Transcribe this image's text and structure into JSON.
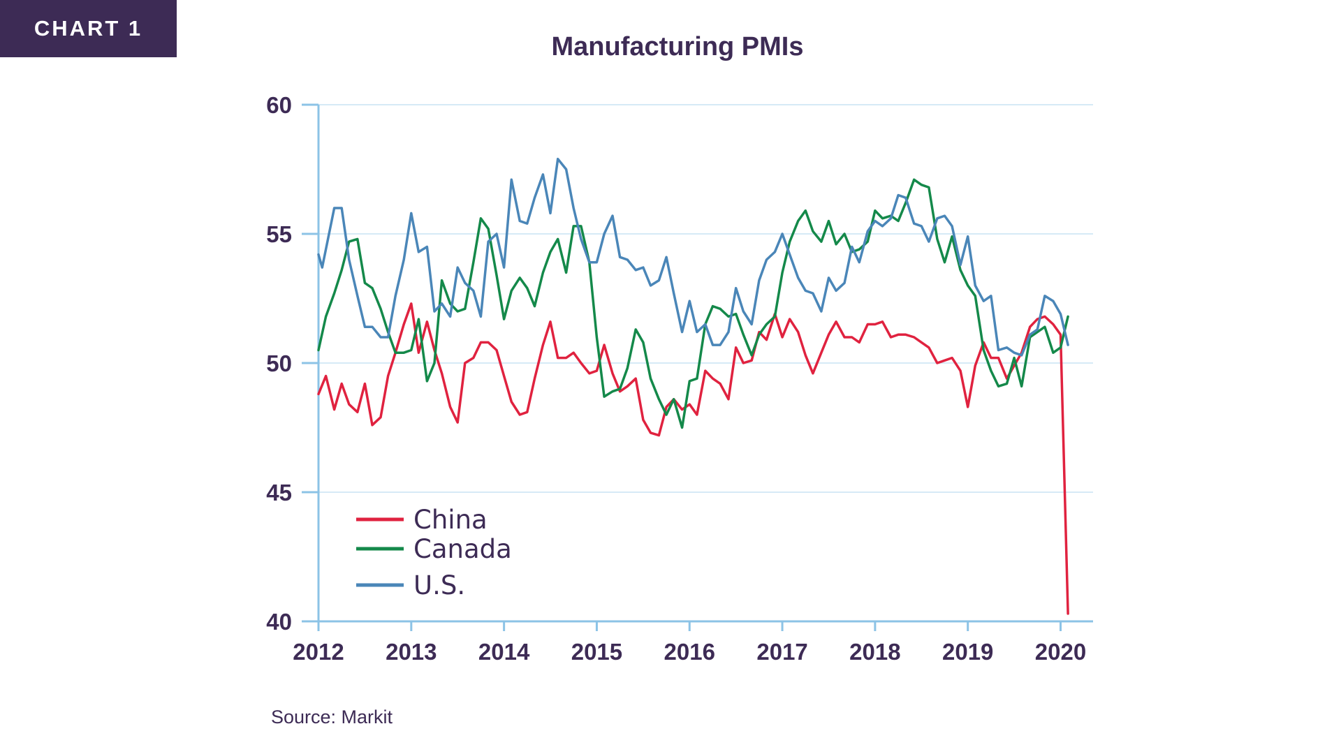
{
  "tag": "CHART 1",
  "source": "Source: Markit",
  "colors": {
    "china": "#e0223f",
    "canada": "#14894a",
    "us": "#4a86b8",
    "text": "#3d2b55",
    "grid": "#c9e3f3",
    "axis": "#8cc3e6"
  },
  "chart_data": {
    "type": "line",
    "title": "Manufacturing PMIs",
    "xlabel": "",
    "ylabel": "",
    "xlim": [
      2012,
      2020.35
    ],
    "ylim": [
      40,
      60
    ],
    "yticks": [
      "60",
      "55",
      "50",
      "45",
      "40"
    ],
    "xticks": [
      "2012",
      "2013",
      "2014",
      "2015",
      "2016",
      "2017",
      "2018",
      "2019",
      "2020"
    ],
    "grid": true,
    "legend_position": "bottom-left",
    "series": [
      {
        "name": "China",
        "color": "#e0223f",
        "points": [
          [
            2012.0,
            48.8
          ],
          [
            2012.08,
            49.5
          ],
          [
            2012.17,
            48.2
          ],
          [
            2012.25,
            49.2
          ],
          [
            2012.33,
            48.4
          ],
          [
            2012.42,
            48.1
          ],
          [
            2012.5,
            49.2
          ],
          [
            2012.58,
            47.6
          ],
          [
            2012.67,
            47.9
          ],
          [
            2012.75,
            49.5
          ],
          [
            2012.83,
            50.4
          ],
          [
            2012.92,
            51.5
          ],
          [
            2013.0,
            52.3
          ],
          [
            2013.08,
            50.4
          ],
          [
            2013.17,
            51.6
          ],
          [
            2013.25,
            50.5
          ],
          [
            2013.33,
            49.6
          ],
          [
            2013.42,
            48.3
          ],
          [
            2013.5,
            47.7
          ],
          [
            2013.58,
            50.0
          ],
          [
            2013.67,
            50.2
          ],
          [
            2013.75,
            50.8
          ],
          [
            2013.83,
            50.8
          ],
          [
            2013.92,
            50.5
          ],
          [
            2014.0,
            49.5
          ],
          [
            2014.08,
            48.5
          ],
          [
            2014.17,
            48.0
          ],
          [
            2014.25,
            48.1
          ],
          [
            2014.33,
            49.4
          ],
          [
            2014.42,
            50.7
          ],
          [
            2014.5,
            51.6
          ],
          [
            2014.58,
            50.2
          ],
          [
            2014.67,
            50.2
          ],
          [
            2014.75,
            50.4
          ],
          [
            2014.83,
            50.0
          ],
          [
            2014.92,
            49.6
          ],
          [
            2015.0,
            49.7
          ],
          [
            2015.08,
            50.7
          ],
          [
            2015.17,
            49.6
          ],
          [
            2015.25,
            48.9
          ],
          [
            2015.33,
            49.1
          ],
          [
            2015.42,
            49.4
          ],
          [
            2015.5,
            47.8
          ],
          [
            2015.58,
            47.3
          ],
          [
            2015.67,
            47.2
          ],
          [
            2015.75,
            48.3
          ],
          [
            2015.83,
            48.6
          ],
          [
            2015.92,
            48.2
          ],
          [
            2016.0,
            48.4
          ],
          [
            2016.08,
            48.0
          ],
          [
            2016.17,
            49.7
          ],
          [
            2016.25,
            49.4
          ],
          [
            2016.33,
            49.2
          ],
          [
            2016.42,
            48.6
          ],
          [
            2016.5,
            50.6
          ],
          [
            2016.58,
            50.0
          ],
          [
            2016.67,
            50.1
          ],
          [
            2016.75,
            51.2
          ],
          [
            2016.83,
            50.9
          ],
          [
            2016.92,
            51.9
          ],
          [
            2017.0,
            51.0
          ],
          [
            2017.08,
            51.7
          ],
          [
            2017.17,
            51.2
          ],
          [
            2017.25,
            50.3
          ],
          [
            2017.33,
            49.6
          ],
          [
            2017.42,
            50.4
          ],
          [
            2017.5,
            51.1
          ],
          [
            2017.58,
            51.6
          ],
          [
            2017.67,
            51.0
          ],
          [
            2017.75,
            51.0
          ],
          [
            2017.83,
            50.8
          ],
          [
            2017.92,
            51.5
          ],
          [
            2018.0,
            51.5
          ],
          [
            2018.08,
            51.6
          ],
          [
            2018.17,
            51.0
          ],
          [
            2018.25,
            51.1
          ],
          [
            2018.33,
            51.1
          ],
          [
            2018.42,
            51.0
          ],
          [
            2018.5,
            50.8
          ],
          [
            2018.58,
            50.6
          ],
          [
            2018.67,
            50.0
          ],
          [
            2018.75,
            50.1
          ],
          [
            2018.83,
            50.2
          ],
          [
            2018.92,
            49.7
          ],
          [
            2019.0,
            48.3
          ],
          [
            2019.08,
            49.9
          ],
          [
            2019.17,
            50.8
          ],
          [
            2019.25,
            50.2
          ],
          [
            2019.33,
            50.2
          ],
          [
            2019.42,
            49.4
          ],
          [
            2019.5,
            49.9
          ],
          [
            2019.58,
            50.4
          ],
          [
            2019.67,
            51.4
          ],
          [
            2019.75,
            51.7
          ],
          [
            2019.83,
            51.8
          ],
          [
            2019.92,
            51.5
          ],
          [
            2020.0,
            51.1
          ],
          [
            2020.08,
            40.3
          ]
        ]
      },
      {
        "name": "Canada",
        "color": "#14894a",
        "points": [
          [
            2012.0,
            50.5
          ],
          [
            2012.08,
            51.8
          ],
          [
            2012.17,
            52.7
          ],
          [
            2012.25,
            53.6
          ],
          [
            2012.33,
            54.7
          ],
          [
            2012.42,
            54.8
          ],
          [
            2012.5,
            53.1
          ],
          [
            2012.58,
            52.9
          ],
          [
            2012.67,
            52.1
          ],
          [
            2012.75,
            51.2
          ],
          [
            2012.83,
            50.4
          ],
          [
            2012.92,
            50.4
          ],
          [
            2013.0,
            50.5
          ],
          [
            2013.08,
            51.7
          ],
          [
            2013.17,
            49.3
          ],
          [
            2013.25,
            50.0
          ],
          [
            2013.33,
            53.2
          ],
          [
            2013.42,
            52.3
          ],
          [
            2013.5,
            52.0
          ],
          [
            2013.58,
            52.1
          ],
          [
            2013.67,
            53.9
          ],
          [
            2013.75,
            55.6
          ],
          [
            2013.83,
            55.2
          ],
          [
            2013.92,
            53.4
          ],
          [
            2014.0,
            51.7
          ],
          [
            2014.08,
            52.8
          ],
          [
            2014.17,
            53.3
          ],
          [
            2014.25,
            52.9
          ],
          [
            2014.33,
            52.2
          ],
          [
            2014.42,
            53.5
          ],
          [
            2014.5,
            54.3
          ],
          [
            2014.58,
            54.8
          ],
          [
            2014.67,
            53.5
          ],
          [
            2014.75,
            55.3
          ],
          [
            2014.83,
            55.3
          ],
          [
            2014.92,
            53.9
          ],
          [
            2015.0,
            51.0
          ],
          [
            2015.08,
            48.7
          ],
          [
            2015.17,
            48.9
          ],
          [
            2015.25,
            49.0
          ],
          [
            2015.33,
            49.8
          ],
          [
            2015.42,
            51.3
          ],
          [
            2015.5,
            50.8
          ],
          [
            2015.58,
            49.4
          ],
          [
            2015.67,
            48.6
          ],
          [
            2015.75,
            48.0
          ],
          [
            2015.83,
            48.6
          ],
          [
            2015.92,
            47.5
          ],
          [
            2016.0,
            49.3
          ],
          [
            2016.08,
            49.4
          ],
          [
            2016.17,
            51.5
          ],
          [
            2016.25,
            52.2
          ],
          [
            2016.33,
            52.1
          ],
          [
            2016.42,
            51.8
          ],
          [
            2016.5,
            51.9
          ],
          [
            2016.58,
            51.1
          ],
          [
            2016.67,
            50.3
          ],
          [
            2016.75,
            51.1
          ],
          [
            2016.83,
            51.5
          ],
          [
            2016.92,
            51.8
          ],
          [
            2017.0,
            53.5
          ],
          [
            2017.08,
            54.7
          ],
          [
            2017.17,
            55.5
          ],
          [
            2017.25,
            55.9
          ],
          [
            2017.33,
            55.1
          ],
          [
            2017.42,
            54.7
          ],
          [
            2017.5,
            55.5
          ],
          [
            2017.58,
            54.6
          ],
          [
            2017.67,
            55.0
          ],
          [
            2017.75,
            54.3
          ],
          [
            2017.83,
            54.4
          ],
          [
            2017.92,
            54.7
          ],
          [
            2018.0,
            55.9
          ],
          [
            2018.08,
            55.6
          ],
          [
            2018.17,
            55.7
          ],
          [
            2018.25,
            55.5
          ],
          [
            2018.33,
            56.2
          ],
          [
            2018.42,
            57.1
          ],
          [
            2018.5,
            56.9
          ],
          [
            2018.58,
            56.8
          ],
          [
            2018.67,
            54.8
          ],
          [
            2018.75,
            53.9
          ],
          [
            2018.83,
            54.9
          ],
          [
            2018.92,
            53.6
          ],
          [
            2019.0,
            53.0
          ],
          [
            2019.08,
            52.6
          ],
          [
            2019.17,
            50.5
          ],
          [
            2019.25,
            49.7
          ],
          [
            2019.33,
            49.1
          ],
          [
            2019.42,
            49.2
          ],
          [
            2019.5,
            50.2
          ],
          [
            2019.58,
            49.1
          ],
          [
            2019.67,
            51.0
          ],
          [
            2019.75,
            51.2
          ],
          [
            2019.83,
            51.4
          ],
          [
            2019.92,
            50.4
          ],
          [
            2020.0,
            50.6
          ],
          [
            2020.08,
            51.8
          ]
        ]
      },
      {
        "name": "U.S.",
        "color": "#4a86b8",
        "points": [
          [
            2012.0,
            54.2
          ],
          [
            2012.04,
            53.7
          ],
          [
            2012.17,
            56.0
          ],
          [
            2012.25,
            56.0
          ],
          [
            2012.33,
            54.0
          ],
          [
            2012.42,
            52.6
          ],
          [
            2012.5,
            51.4
          ],
          [
            2012.58,
            51.4
          ],
          [
            2012.67,
            51.0
          ],
          [
            2012.75,
            51.0
          ],
          [
            2012.83,
            52.6
          ],
          [
            2012.92,
            54.0
          ],
          [
            2013.0,
            55.8
          ],
          [
            2013.08,
            54.3
          ],
          [
            2013.17,
            54.5
          ],
          [
            2013.25,
            52.0
          ],
          [
            2013.33,
            52.3
          ],
          [
            2013.42,
            51.8
          ],
          [
            2013.5,
            53.7
          ],
          [
            2013.58,
            53.1
          ],
          [
            2013.67,
            52.8
          ],
          [
            2013.75,
            51.8
          ],
          [
            2013.83,
            54.7
          ],
          [
            2013.92,
            55.0
          ],
          [
            2014.0,
            53.7
          ],
          [
            2014.08,
            57.1
          ],
          [
            2014.17,
            55.5
          ],
          [
            2014.25,
            55.4
          ],
          [
            2014.33,
            56.4
          ],
          [
            2014.42,
            57.3
          ],
          [
            2014.5,
            55.8
          ],
          [
            2014.58,
            57.9
          ],
          [
            2014.67,
            57.5
          ],
          [
            2014.75,
            56.0
          ],
          [
            2014.83,
            54.8
          ],
          [
            2014.92,
            53.9
          ],
          [
            2015.0,
            53.9
          ],
          [
            2015.08,
            55.0
          ],
          [
            2015.17,
            55.7
          ],
          [
            2015.25,
            54.1
          ],
          [
            2015.33,
            54.0
          ],
          [
            2015.42,
            53.6
          ],
          [
            2015.5,
            53.7
          ],
          [
            2015.58,
            53.0
          ],
          [
            2015.67,
            53.2
          ],
          [
            2015.75,
            54.1
          ],
          [
            2015.83,
            52.7
          ],
          [
            2015.92,
            51.2
          ],
          [
            2016.0,
            52.4
          ],
          [
            2016.08,
            51.2
          ],
          [
            2016.17,
            51.5
          ],
          [
            2016.25,
            50.7
          ],
          [
            2016.33,
            50.7
          ],
          [
            2016.42,
            51.2
          ],
          [
            2016.5,
            52.9
          ],
          [
            2016.58,
            52.0
          ],
          [
            2016.67,
            51.5
          ],
          [
            2016.75,
            53.2
          ],
          [
            2016.83,
            54.0
          ],
          [
            2016.92,
            54.3
          ],
          [
            2017.0,
            55.0
          ],
          [
            2017.08,
            54.2
          ],
          [
            2017.17,
            53.3
          ],
          [
            2017.25,
            52.8
          ],
          [
            2017.33,
            52.7
          ],
          [
            2017.42,
            52.0
          ],
          [
            2017.5,
            53.3
          ],
          [
            2017.58,
            52.8
          ],
          [
            2017.67,
            53.1
          ],
          [
            2017.75,
            54.5
          ],
          [
            2017.83,
            53.9
          ],
          [
            2017.92,
            55.1
          ],
          [
            2018.0,
            55.5
          ],
          [
            2018.08,
            55.3
          ],
          [
            2018.17,
            55.6
          ],
          [
            2018.25,
            56.5
          ],
          [
            2018.33,
            56.4
          ],
          [
            2018.42,
            55.4
          ],
          [
            2018.5,
            55.3
          ],
          [
            2018.58,
            54.7
          ],
          [
            2018.67,
            55.6
          ],
          [
            2018.75,
            55.7
          ],
          [
            2018.83,
            55.3
          ],
          [
            2018.92,
            53.8
          ],
          [
            2019.0,
            54.9
          ],
          [
            2019.08,
            53.0
          ],
          [
            2019.17,
            52.4
          ],
          [
            2019.25,
            52.6
          ],
          [
            2019.33,
            50.5
          ],
          [
            2019.42,
            50.6
          ],
          [
            2019.5,
            50.4
          ],
          [
            2019.58,
            50.3
          ],
          [
            2019.67,
            51.1
          ],
          [
            2019.75,
            51.3
          ],
          [
            2019.83,
            52.6
          ],
          [
            2019.92,
            52.4
          ],
          [
            2020.0,
            51.9
          ],
          [
            2020.08,
            50.7
          ]
        ]
      }
    ]
  }
}
